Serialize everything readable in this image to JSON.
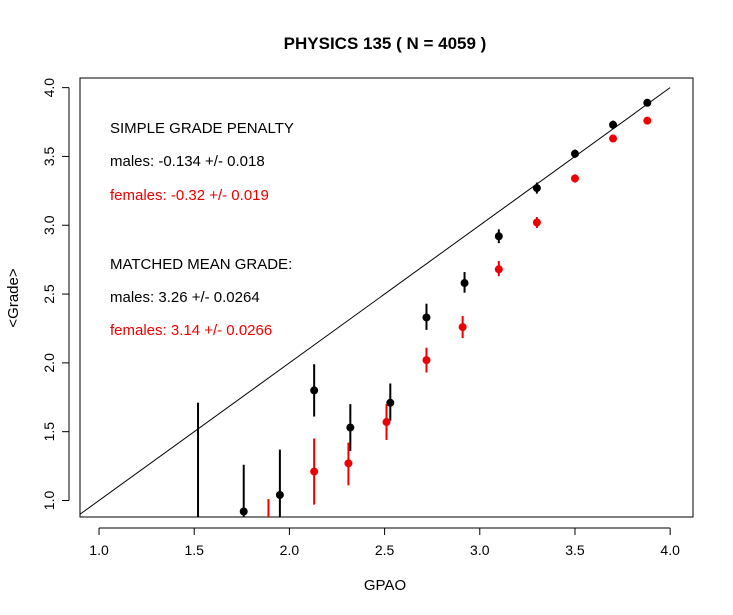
{
  "chart_data": {
    "type": "scatter",
    "title": "PHYSICS 135 ( N =  4059 )",
    "xlabel": "GPAO",
    "ylabel": "<Grade>",
    "xlim": [
      0.9,
      4.12
    ],
    "ylim": [
      0.88,
      4.07
    ],
    "x_ticks": [
      {
        "value": 1.0,
        "label": "1.0"
      },
      {
        "value": 1.5,
        "label": "1.5"
      },
      {
        "value": 2.0,
        "label": "2.0"
      },
      {
        "value": 2.5,
        "label": "2.5"
      },
      {
        "value": 3.0,
        "label": "3.0"
      },
      {
        "value": 3.5,
        "label": "3.5"
      },
      {
        "value": 4.0,
        "label": "4.0"
      }
    ],
    "y_ticks": [
      {
        "value": 1.0,
        "label": "1.0"
      },
      {
        "value": 1.5,
        "label": "1.5"
      },
      {
        "value": 2.0,
        "label": "2.0"
      },
      {
        "value": 2.5,
        "label": "2.5"
      },
      {
        "value": 3.0,
        "label": "3.0"
      },
      {
        "value": 3.5,
        "label": "3.5"
      },
      {
        "value": 4.0,
        "label": "4.0"
      }
    ],
    "reference_line": {
      "x": [
        0.9,
        4.0
      ],
      "y": [
        0.9,
        4.0
      ]
    },
    "grid": false,
    "legend": "none",
    "series": [
      {
        "color": "#000000",
        "points": [
          {
            "x": 1.52,
            "y": 0.72,
            "lo": 0.5,
            "hi": 1.71
          },
          {
            "x": 1.76,
            "y": 0.92,
            "lo": 0.7,
            "hi": 1.26
          },
          {
            "x": 1.95,
            "y": 1.04,
            "lo": 0.72,
            "hi": 1.37
          },
          {
            "x": 2.13,
            "y": 1.8,
            "lo": 1.61,
            "hi": 1.99
          },
          {
            "x": 2.32,
            "y": 1.53,
            "lo": 1.36,
            "hi": 1.7
          },
          {
            "x": 2.53,
            "y": 1.71,
            "lo": 1.58,
            "hi": 1.85
          },
          {
            "x": 2.72,
            "y": 2.33,
            "lo": 2.24,
            "hi": 2.43
          },
          {
            "x": 2.92,
            "y": 2.58,
            "lo": 2.51,
            "hi": 2.66
          },
          {
            "x": 3.1,
            "y": 2.92,
            "lo": 2.87,
            "hi": 2.97
          },
          {
            "x": 3.3,
            "y": 3.27,
            "lo": 3.23,
            "hi": 3.31
          },
          {
            "x": 3.5,
            "y": 3.52,
            "lo": 3.49,
            "hi": 3.55
          },
          {
            "x": 3.7,
            "y": 3.73,
            "lo": 3.7,
            "hi": 3.76
          },
          {
            "x": 3.88,
            "y": 3.89,
            "lo": 3.87,
            "hi": 3.91
          }
        ]
      },
      {
        "color": "#ee0000",
        "points": [
          {
            "x": 1.89,
            "y": 0.75,
            "lo": 0.5,
            "hi": 1.01
          },
          {
            "x": 2.13,
            "y": 1.21,
            "lo": 0.97,
            "hi": 1.45
          },
          {
            "x": 2.31,
            "y": 1.27,
            "lo": 1.11,
            "hi": 1.42
          },
          {
            "x": 2.51,
            "y": 1.57,
            "lo": 1.44,
            "hi": 1.7
          },
          {
            "x": 2.72,
            "y": 2.02,
            "lo": 1.93,
            "hi": 2.11
          },
          {
            "x": 2.91,
            "y": 2.26,
            "lo": 2.18,
            "hi": 2.34
          },
          {
            "x": 3.1,
            "y": 2.68,
            "lo": 2.63,
            "hi": 2.74
          },
          {
            "x": 3.3,
            "y": 3.02,
            "lo": 2.98,
            "hi": 3.06
          },
          {
            "x": 3.5,
            "y": 3.34,
            "lo": 3.31,
            "hi": 3.37
          },
          {
            "x": 3.7,
            "y": 3.63,
            "lo": 3.61,
            "hi": 3.65
          },
          {
            "x": 3.88,
            "y": 3.76,
            "lo": 3.74,
            "hi": 3.78
          }
        ]
      }
    ],
    "annotations": [
      {
        "text": "SIMPLE GRADE PENALTY",
        "color": "#000000"
      },
      {
        "text": "males:  -0.134 +/- 0.018",
        "color": "#000000"
      },
      {
        "text": "females:  -0.32 +/- 0.019",
        "color": "#ee0000"
      },
      {
        "text": "MATCHED MEAN GRADE:",
        "color": "#000000"
      },
      {
        "text": "males:  3.26 +/- 0.0264",
        "color": "#000000"
      },
      {
        "text": "females:  3.14 +/- 0.0266",
        "color": "#ee0000"
      }
    ]
  }
}
